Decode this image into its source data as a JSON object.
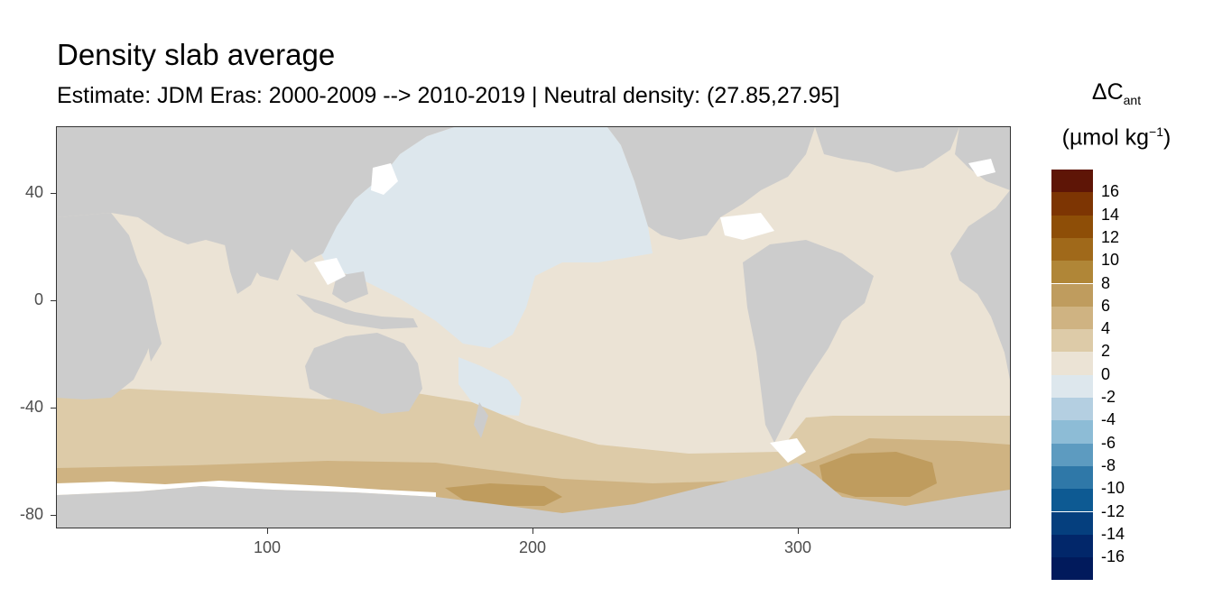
{
  "title": "Density slab average",
  "subtitle": "Estimate: JDM Eras: 2000-2009 --> 2010-2019 | Neutral density: (27.85,27.95]",
  "legend": {
    "title_prefix": "ΔC",
    "title_sub": "ant",
    "unit_prefix": "(µmol kg",
    "unit_sup": "−1",
    "unit_suffix": ")",
    "labels": [
      "16",
      "14",
      "12",
      "10",
      "8",
      "6",
      "4",
      "2",
      "0",
      "-2",
      "-4",
      "-6",
      "-8",
      "-10",
      "-12",
      "-14",
      "-16"
    ],
    "colors": [
      "#5e1506",
      "#7d3503",
      "#8e4e07",
      "#a0691a",
      "#b08637",
      "#bf9c5e",
      "#cfb382",
      "#ddcba8",
      "#ebe3d5",
      "#dde7ed",
      "#b4cfe1",
      "#8dbcd6",
      "#5d9bc0",
      "#2f78a8",
      "#0d5a93",
      "#053f7e",
      "#02276a",
      "#011a5c"
    ]
  },
  "axes": {
    "x_ticks": [
      "100",
      "200",
      "300"
    ],
    "y_ticks": [
      "40",
      "0",
      "-40",
      "-80"
    ]
  },
  "chart_data": {
    "type": "heatmap",
    "title": "Density slab average",
    "xlim": [
      20,
      380
    ],
    "ylim": [
      -85,
      65
    ],
    "x_ticks": [
      100,
      200,
      300
    ],
    "y_ticks": [
      40,
      0,
      -40,
      -80
    ],
    "land_color": "#cccccc",
    "no_data_color": "#ffffff",
    "regions": [
      {
        "area": "North Pacific",
        "value_bin": "-2 to 0"
      },
      {
        "area": "Tropical & South Pacific",
        "value_bin": "0 to 2"
      },
      {
        "area": "Indian Ocean",
        "value_bin": "0 to 2"
      },
      {
        "area": "Atlantic Ocean",
        "value_bin": "0 to 2"
      },
      {
        "area": "Southern Ocean north band",
        "value_bin": "2 to 4"
      },
      {
        "area": "Southern Ocean south band",
        "value_bin": "4 to 6"
      },
      {
        "area": "Weddell Gyre core",
        "value_bin": "6 to 8"
      }
    ]
  }
}
